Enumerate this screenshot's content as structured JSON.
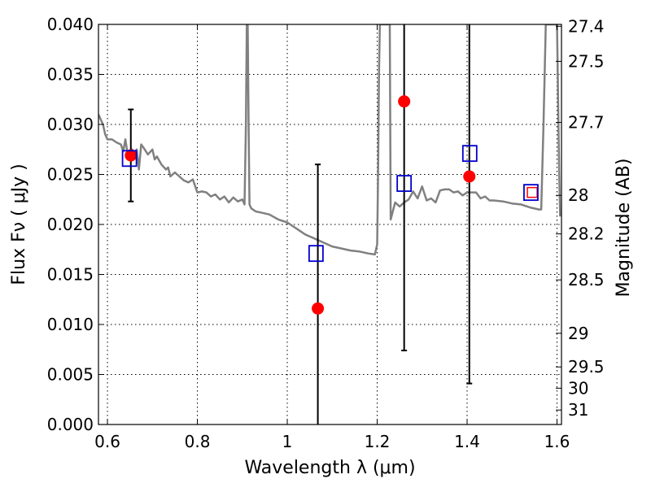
{
  "chart_data": {
    "type": "scatter",
    "xlabel": "Wavelength  λ (μm)",
    "ylabel": "Flux  Fν  ( μJy )",
    "y2label": "Magnitude (AB)",
    "xlim": [
      0.58,
      1.61
    ],
    "ylim": [
      0.0,
      0.04
    ],
    "grid": true,
    "x_ticks": [
      {
        "value": 0.6,
        "label": "0.6"
      },
      {
        "value": 0.8,
        "label": "0.8"
      },
      {
        "value": 1.0,
        "label": "1"
      },
      {
        "value": 1.2,
        "label": "1.2"
      },
      {
        "value": 1.4,
        "label": "1.4"
      },
      {
        "value": 1.6,
        "label": "1.6"
      }
    ],
    "y_ticks": [
      {
        "value": 0.0,
        "label": "0.000"
      },
      {
        "value": 0.005,
        "label": "0.005"
      },
      {
        "value": 0.01,
        "label": "0.010"
      },
      {
        "value": 0.015,
        "label": "0.015"
      },
      {
        "value": 0.02,
        "label": "0.020"
      },
      {
        "value": 0.025,
        "label": "0.025"
      },
      {
        "value": 0.03,
        "label": "0.030"
      },
      {
        "value": 0.035,
        "label": "0.035"
      },
      {
        "value": 0.04,
        "label": "0.040"
      }
    ],
    "y2_ticks": [
      {
        "value": 27.4,
        "label": "27.4"
      },
      {
        "value": 27.5,
        "label": "27.5"
      },
      {
        "value": 27.7,
        "label": "27.7"
      },
      {
        "value": 28.0,
        "label": "28"
      },
      {
        "value": 28.2,
        "label": "28.2"
      },
      {
        "value": 28.5,
        "label": "28.5"
      },
      {
        "value": 29.0,
        "label": "29"
      },
      {
        "value": 29.5,
        "label": "29.5"
      },
      {
        "value": 30.0,
        "label": "30"
      },
      {
        "value": 31.0,
        "label": "31"
      }
    ],
    "series": [
      {
        "kind": "line",
        "color": "#808080",
        "x": [
          0.58,
          0.59,
          0.595,
          0.6,
          0.61,
          0.62,
          0.63,
          0.635,
          0.64,
          0.645,
          0.65,
          0.655,
          0.66,
          0.665,
          0.67,
          0.675,
          0.68,
          0.69,
          0.7,
          0.705,
          0.71,
          0.72,
          0.73,
          0.735,
          0.74,
          0.75,
          0.76,
          0.77,
          0.78,
          0.79,
          0.8,
          0.81,
          0.82,
          0.83,
          0.84,
          0.85,
          0.86,
          0.87,
          0.88,
          0.89,
          0.9,
          0.905,
          0.908,
          0.91,
          0.912,
          0.914,
          0.916,
          0.92,
          0.93,
          0.94,
          0.96,
          0.98,
          1.0,
          1.02,
          1.04,
          1.06,
          1.08,
          1.1,
          1.12,
          1.14,
          1.16,
          1.18,
          1.195,
          1.2,
          1.202,
          1.204,
          1.206,
          1.21,
          1.22,
          1.228,
          1.23,
          1.24,
          1.25,
          1.26,
          1.27,
          1.28,
          1.29,
          1.3,
          1.31,
          1.32,
          1.33,
          1.34,
          1.35,
          1.36,
          1.37,
          1.38,
          1.39,
          1.4,
          1.41,
          1.42,
          1.43,
          1.44,
          1.45,
          1.46,
          1.48,
          1.5,
          1.52,
          1.54,
          1.56,
          1.565,
          1.57,
          1.575,
          1.58,
          1.6,
          1.605,
          1.607
        ],
        "y": [
          0.031,
          0.03,
          0.029,
          0.0285,
          0.0285,
          0.0282,
          0.028,
          0.0273,
          0.0285,
          0.027,
          0.027,
          0.0275,
          0.027,
          0.0275,
          0.0255,
          0.028,
          0.0277,
          0.027,
          0.0275,
          0.0265,
          0.0268,
          0.026,
          0.0255,
          0.0257,
          0.0248,
          0.0252,
          0.0248,
          0.0244,
          0.0242,
          0.0245,
          0.0232,
          0.0233,
          0.0232,
          0.0228,
          0.023,
          0.0225,
          0.0228,
          0.0222,
          0.0227,
          0.0223,
          0.0225,
          0.022,
          0.03,
          0.04,
          0.04,
          0.03,
          0.022,
          0.0216,
          0.0213,
          0.0212,
          0.021,
          0.0205,
          0.0202,
          0.0196,
          0.019,
          0.0186,
          0.0182,
          0.0178,
          0.0176,
          0.0174,
          0.0173,
          0.0171,
          0.017,
          0.018,
          0.025,
          0.035,
          0.04,
          0.04,
          0.04,
          0.04,
          0.0205,
          0.0222,
          0.0218,
          0.0222,
          0.0225,
          0.0233,
          0.0226,
          0.0238,
          0.0224,
          0.0226,
          0.0222,
          0.0234,
          0.0235,
          0.0235,
          0.0232,
          0.0233,
          0.0229,
          0.0232,
          0.0232,
          0.0232,
          0.0226,
          0.0228,
          0.0224,
          0.0224,
          0.0223,
          0.0221,
          0.022,
          0.0217,
          0.0215,
          0.0215,
          0.03,
          0.04,
          0.04,
          0.04,
          0.025,
          0.0208
        ]
      },
      {
        "kind": "errorbar",
        "color": "#ff0000",
        "x": [
          0.652,
          1.068,
          1.26,
          1.405
        ],
        "y": [
          0.0269,
          0.0116,
          0.0323,
          0.0248
        ],
        "yerr_low": [
          0.0223,
          0.0,
          0.0074,
          0.0041
        ],
        "yerr_high": [
          0.0315,
          0.026,
          0.04,
          0.04
        ]
      },
      {
        "kind": "scatter",
        "color": "#ff0000",
        "x": [
          1.545
        ],
        "y": [
          0.0232
        ]
      },
      {
        "kind": "scatter",
        "color": "#0000cc",
        "x": [
          0.649,
          1.064,
          1.26,
          1.406,
          1.542
        ],
        "y": [
          0.0266,
          0.0171,
          0.0241,
          0.0271,
          0.0232
        ]
      }
    ]
  }
}
